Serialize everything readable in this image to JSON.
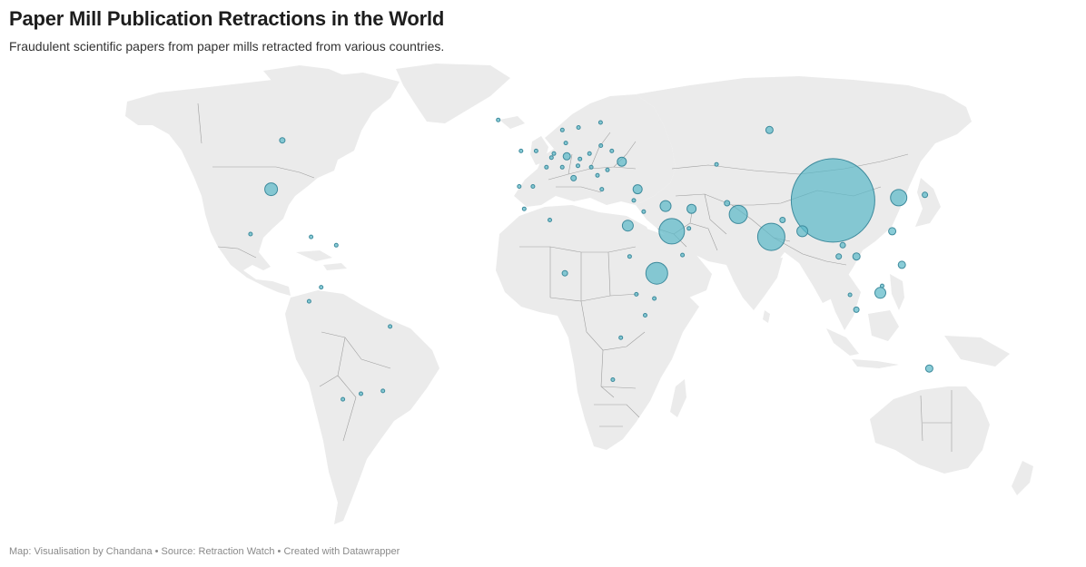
{
  "header": {
    "title": "Paper Mill Publication Retractions in the World",
    "subtitle": "Fraudulent scientific papers from paper mills retracted from various countries."
  },
  "footer": {
    "prefix": "Map: ",
    "credit": "Visualisation by Chandana",
    "separator": " • ",
    "source_label": "Source: ",
    "source": "Retraction Watch",
    "created": "Created with Datawrapper"
  },
  "colors": {
    "land": "#ebebeb",
    "border": "#9e9e9e",
    "bubble_fill": "#5cb8c8",
    "bubble_stroke": "#3d8a9c"
  },
  "map": {
    "projection": "robinson",
    "symbol": "proportional-circle"
  },
  "bubbles": [
    {
      "place": "China",
      "lon": 104,
      "lat": 35,
      "magnitude": 46
    },
    {
      "place": "India",
      "lon": 79,
      "lat": 22,
      "magnitude": 15
    },
    {
      "place": "Saudi Arabia",
      "lon": 45,
      "lat": 24,
      "magnitude": 14
    },
    {
      "place": "Ethiopia",
      "lon": 39,
      "lat": 9,
      "magnitude": 12
    },
    {
      "place": "Pakistan",
      "lon": 69,
      "lat": 30,
      "magnitude": 10
    },
    {
      "place": "South Korea",
      "lon": 128,
      "lat": 36,
      "magnitude": 9
    },
    {
      "place": "United States",
      "lon": -98,
      "lat": 39,
      "magnitude": 7
    },
    {
      "place": "Iraq",
      "lon": 44,
      "lat": 33,
      "magnitude": 6
    },
    {
      "place": "Egypt",
      "lon": 30,
      "lat": 26,
      "magnitude": 6
    },
    {
      "place": "Bangladesh",
      "lon": 90,
      "lat": 24,
      "magnitude": 6
    },
    {
      "place": "Iran",
      "lon": 53,
      "lat": 32,
      "magnitude": 5
    },
    {
      "place": "Malaysia",
      "lon": 114,
      "lat": 2,
      "magnitude": 6
    },
    {
      "place": "Turkey",
      "lon": 35,
      "lat": 39,
      "magnitude": 5
    },
    {
      "place": "Russia",
      "lon": 97,
      "lat": 61,
      "magnitude": 4
    },
    {
      "place": "Ukraine",
      "lon": 31,
      "lat": 49,
      "magnitude": 5
    },
    {
      "place": "Vietnam",
      "lon": 107,
      "lat": 15,
      "magnitude": 4
    },
    {
      "place": "Philippines",
      "lon": 122,
      "lat": 12,
      "magnitude": 4
    },
    {
      "place": "Taiwan",
      "lon": 121,
      "lat": 24,
      "magnitude": 4
    },
    {
      "place": "Australia",
      "lon": 134,
      "lat": -25,
      "magnitude": 4
    },
    {
      "place": "Canada",
      "lon": -106,
      "lat": 57,
      "magnitude": 3
    },
    {
      "place": "Nigeria",
      "lon": 8,
      "lat": 9,
      "magnitude": 3
    },
    {
      "place": "Germany",
      "lon": 10,
      "lat": 51,
      "magnitude": 4
    },
    {
      "place": "Afghanistan",
      "lon": 66,
      "lat": 34,
      "magnitude": 3
    },
    {
      "place": "Nepal",
      "lon": 84,
      "lat": 28,
      "magnitude": 3
    },
    {
      "place": "Thailand",
      "lon": 101,
      "lat": 15,
      "magnitude": 3
    },
    {
      "place": "Laos",
      "lon": 103,
      "lat": 19,
      "magnitude": 3
    },
    {
      "place": "Japan",
      "lon": 138,
      "lat": 37,
      "magnitude": 3
    },
    {
      "place": "Indonesia",
      "lon": 106,
      "lat": -4,
      "magnitude": 3
    },
    {
      "place": "Italy",
      "lon": 12,
      "lat": 43,
      "magnitude": 3
    },
    {
      "place": "Kazakhstan",
      "lon": 67,
      "lat": 48,
      "magnitude": 2
    },
    {
      "place": "Ecuador",
      "lon": -78,
      "lat": -1,
      "magnitude": 2
    },
    {
      "place": "Colombia",
      "lon": -74,
      "lat": 4,
      "magnitude": 2
    },
    {
      "place": "Brazil",
      "lon": -51,
      "lat": -10,
      "magnitude": 2
    },
    {
      "place": "Argentina",
      "lon": -64,
      "lat": -34,
      "magnitude": 2
    },
    {
      "place": "Chile",
      "lon": -71,
      "lat": -36,
      "magnitude": 2
    },
    {
      "place": "Uruguay",
      "lon": -56,
      "lat": -33,
      "magnitude": 2
    },
    {
      "place": "Mexico",
      "lon": -100,
      "lat": 23,
      "magnitude": 2
    },
    {
      "place": "Cuba",
      "lon": -79,
      "lat": 22,
      "magnitude": 2
    },
    {
      "place": "Dominican Republic",
      "lon": -70,
      "lat": 19,
      "magnitude": 2
    },
    {
      "place": "Morocco",
      "lon": -6,
      "lat": 32,
      "magnitude": 2
    },
    {
      "place": "Algeria",
      "lon": 3,
      "lat": 28,
      "magnitude": 2
    },
    {
      "place": "Portugal",
      "lon": -8,
      "lat": 40,
      "magnitude": 2
    },
    {
      "place": "Spain",
      "lon": -3,
      "lat": 40,
      "magnitude": 2
    },
    {
      "place": "France",
      "lon": 2,
      "lat": 47,
      "magnitude": 2
    },
    {
      "place": "United Kingdom",
      "lon": -2,
      "lat": 53,
      "magnitude": 2
    },
    {
      "place": "Ireland",
      "lon": -8,
      "lat": 53,
      "magnitude": 2
    },
    {
      "place": "Iceland",
      "lon": -19,
      "lat": 65,
      "magnitude": 1
    },
    {
      "place": "Norway",
      "lon": 9,
      "lat": 61,
      "magnitude": 2
    },
    {
      "place": "Sweden",
      "lon": 16,
      "lat": 62,
      "magnitude": 2
    },
    {
      "place": "Finland",
      "lon": 26,
      "lat": 64,
      "magnitude": 2
    },
    {
      "place": "Denmark",
      "lon": 10,
      "lat": 56,
      "magnitude": 2
    },
    {
      "place": "Netherlands",
      "lon": 5,
      "lat": 52,
      "magnitude": 2
    },
    {
      "place": "Belgium",
      "lon": 4,
      "lat": 50.5,
      "magnitude": 2
    },
    {
      "place": "Switzerland",
      "lon": 8,
      "lat": 47,
      "magnitude": 2
    },
    {
      "place": "Austria",
      "lon": 14,
      "lat": 47.5,
      "magnitude": 2
    },
    {
      "place": "Poland",
      "lon": 19,
      "lat": 52,
      "magnitude": 2
    },
    {
      "place": "Czechia",
      "lon": 15,
      "lat": 50,
      "magnitude": 2
    },
    {
      "place": "Hungary",
      "lon": 19,
      "lat": 47,
      "magnitude": 2
    },
    {
      "place": "Romania",
      "lon": 25,
      "lat": 46,
      "magnitude": 2
    },
    {
      "place": "Serbia",
      "lon": 21,
      "lat": 44,
      "magnitude": 2
    },
    {
      "place": "Greece",
      "lon": 22,
      "lat": 39,
      "magnitude": 2
    },
    {
      "place": "Lithuania",
      "lon": 24,
      "lat": 55,
      "magnitude": 2
    },
    {
      "place": "Belarus",
      "lon": 28,
      "lat": 53,
      "magnitude": 2
    },
    {
      "place": "Cyprus",
      "lon": 33,
      "lat": 35,
      "magnitude": 1
    },
    {
      "place": "Jordan",
      "lon": 36,
      "lat": 31,
      "magnitude": 2
    },
    {
      "place": "Yemen",
      "lon": 48,
      "lat": 15.5,
      "magnitude": 2
    },
    {
      "place": "Qatar",
      "lon": 51,
      "lat": 25,
      "magnitude": 1
    },
    {
      "place": "Sudan",
      "lon": 30,
      "lat": 15,
      "magnitude": 2
    },
    {
      "place": "Kenya",
      "lon": 38,
      "lat": 0,
      "magnitude": 2
    },
    {
      "place": "Uganda",
      "lon": 32,
      "lat": 1.5,
      "magnitude": 2
    },
    {
      "place": "Tanzania",
      "lon": 35,
      "lat": -6,
      "magnitude": 2
    },
    {
      "place": "Zambia",
      "lon": 27,
      "lat": -14,
      "magnitude": 1
    },
    {
      "place": "South Africa",
      "lon": 25,
      "lat": -29,
      "magnitude": 2
    },
    {
      "place": "Brunei",
      "lon": 114.7,
      "lat": 4.5,
      "magnitude": 2
    },
    {
      "place": "Singapore",
      "lon": 103.8,
      "lat": 1.3,
      "magnitude": 1
    }
  ]
}
